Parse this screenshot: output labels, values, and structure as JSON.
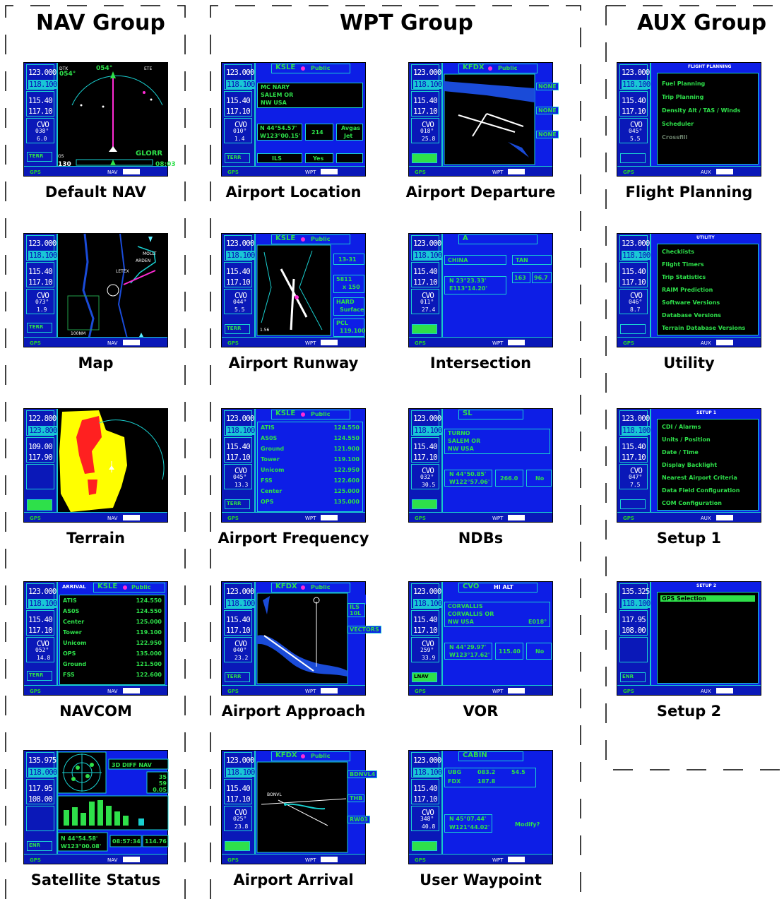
{
  "groups": {
    "nav": {
      "title": "NAV Group"
    },
    "wpt": {
      "title": "WPT Group"
    },
    "aux": {
      "title": "AUX Group"
    }
  },
  "tiles": {
    "default_nav": {
      "caption": "Default NAV",
      "com1": "123.000",
      "com2": "118.100",
      "nav1": "115.40",
      "nav2": "117.10",
      "vor": "CVO",
      "brg": "038°",
      "dis": "6.0",
      "dtk": "054°",
      "gs": "130",
      "trk": "054°",
      "ete": "08:03",
      "wpt": "GLORR"
    },
    "map": {
      "caption": "Map",
      "com1": "123.000",
      "com2": "118.100",
      "nav1": "115.40",
      "nav2": "117.10",
      "vor": "CVO",
      "brg": "073°",
      "dis": "1.9",
      "softkey": "TERR"
    },
    "terrain": {
      "caption": "Terrain",
      "com1": "122.800",
      "com2": "123.800",
      "nav1": "109.00",
      "nav2": "117.90"
    },
    "navcom": {
      "caption": "NAVCOM",
      "com1": "123.000",
      "com2": "118.100",
      "nav1": "115.40",
      "nav2": "117.10",
      "vor": "CVO",
      "brg": "052°",
      "dis": "14.8",
      "header": "ARRIVAL",
      "ident": "KSLE",
      "public": "Public",
      "rows": [
        [
          "ATIS",
          "124.550"
        ],
        [
          "AS0S",
          "124.550"
        ],
        [
          "Center",
          "125.000"
        ],
        [
          "Tower",
          "119.100"
        ],
        [
          "Unicom",
          "122.950"
        ],
        [
          "OPS",
          "135.000"
        ],
        [
          "Ground",
          "121.500"
        ],
        [
          "FSS",
          "122.600"
        ]
      ]
    },
    "satellite": {
      "caption": "Satellite Status",
      "com1": "135.975",
      "com2": "118.000",
      "nav1": "117.95",
      "nav2": "108.00",
      "status": "3D DIFF NAV",
      "epe": "35",
      "hdop": "59",
      "vdop": "0.05",
      "pos1": "N 44°54.58'",
      "pos2": "W123°00.08'",
      "time": "08:57:34",
      "alt": "114.76",
      "softkey": "ENR"
    },
    "airport_location": {
      "caption": "Airport Location",
      "com1": "123.000",
      "com2": "118.100",
      "nav1": "115.40",
      "nav2": "117.10",
      "vor": "CVO",
      "brg": "010°",
      "dis": "1.4",
      "ident": "KSLE",
      "public": "Public",
      "fac1": "MC NARY",
      "fac2": "SALEM OR",
      "fac3": "NW USA",
      "pos1": "N 44°54.57'",
      "pos2": "W123°00.15'",
      "elev": "214",
      "fuel1": "Avgas",
      "fuel2": "Jet",
      "appr": "ILS",
      "radar": "Yes"
    },
    "airport_runway": {
      "caption": "Airport Runway",
      "com1": "123.000",
      "com2": "118.100",
      "nav1": "115.40",
      "nav2": "117.10",
      "vor": "CVO",
      "brg": "044°",
      "dis": "5.5",
      "ident": "KSLE",
      "public": "Public",
      "rwy": "13-31",
      "size1": "5811",
      "size2": "x 150",
      "surf1": "HARD",
      "surf2": "Surface",
      "pcl1": "PCL",
      "pcl2": "119.100",
      "scale": "1.56"
    },
    "airport_frequency": {
      "caption": "Airport Frequency",
      "com1": "123.000",
      "com2": "118.100",
      "nav1": "115.40",
      "nav2": "117.10",
      "vor": "CVO",
      "brg": "045°",
      "dis": "13.3",
      "ident": "KSLE",
      "public": "Public",
      "rows": [
        [
          "ATIS",
          "124.550"
        ],
        [
          "AS0S",
          "124.550"
        ],
        [
          "Ground",
          "121.900"
        ],
        [
          "Tower",
          "119.100"
        ],
        [
          "Unicom",
          "122.950"
        ],
        [
          "FSS",
          "122.600"
        ],
        [
          "Center",
          "125.000"
        ],
        [
          "OPS",
          "135.000"
        ]
      ]
    },
    "airport_approach": {
      "caption": "Airport Approach",
      "com1": "123.000",
      "com2": "118.100",
      "nav1": "115.40",
      "nav2": "117.10",
      "vor": "CVO",
      "brg": "040°",
      "dis": "23.2",
      "ident": "KFDX",
      "public": "Public",
      "appr": "ILS 10L",
      "trans": "VECTORS"
    },
    "airport_arrival": {
      "caption": "Airport Arrival",
      "com1": "123.000",
      "com2": "118.100",
      "nav1": "115.40",
      "nav2": "117.10",
      "vor": "CVO",
      "brg": "025°",
      "dis": "23.8",
      "ident": "KFDX",
      "public": "Public",
      "arr": "BDNVL4",
      "trans": "THB",
      "rwy": "RW03"
    },
    "airport_departure": {
      "caption": "Airport Departure",
      "com1": "123.000",
      "com2": "118.100",
      "nav1": "115.40",
      "nav2": "117.10",
      "vor": "CVO",
      "brg": "018°",
      "dis": "25.8",
      "ident": "KFDX",
      "public": "Public",
      "dep": "NONE",
      "rwy": "NONE",
      "trans": "NONE"
    },
    "intersection": {
      "caption": "Intersection",
      "com1": "123.000",
      "com2": "118.100",
      "nav1": "115.40",
      "nav2": "117.10",
      "vor": "CVO",
      "brg": "011°",
      "dis": "27.4",
      "ident": "A",
      "region": "CHINA",
      "pos1": "N 23°23.33'",
      "pos2": "E113°14.20'",
      "near": "TAN",
      "rad": "163",
      "dis2": "96.7"
    },
    "ndbs": {
      "caption": "NDBs",
      "com1": "123.000",
      "com2": "118.100",
      "nav1": "115.40",
      "nav2": "117.10",
      "vor": "CVO",
      "brg": "032°",
      "dis": "30.5",
      "ident": "SL",
      "fac1": "TURNO",
      "fac2": "SALEM OR",
      "fac3": "NW USA",
      "pos1": "N 44°50.85'",
      "pos2": "W122°57.06'",
      "freq": "266.0",
      "wx": "No"
    },
    "vor": {
      "caption": "VOR",
      "com1": "123.000",
      "com2": "118.100",
      "nav1": "115.40",
      "nav2": "117.10",
      "vor": "CVO",
      "brg": "259°",
      "dis": "33.9",
      "ident": "CVO",
      "class": "HI ALT",
      "fac1": "CORVALLIS",
      "fac2": "CORVALLIS OR",
      "fac3": "NW USA",
      "var": "E018°",
      "pos1": "N 44°29.97'",
      "pos2": "W123°17.62'",
      "freq": "115.40",
      "wx": "No"
    },
    "user_waypoint": {
      "caption": "User Waypoint",
      "com1": "123.000",
      "com2": "118.100",
      "nav1": "115.40",
      "nav2": "117.10",
      "vor": "CVO",
      "brg": "348°",
      "dis": "40.8",
      "ident": "CABIN",
      "r1": "UBG",
      "r1a": "083.2",
      "r1b": "54.5",
      "r2": "FDX",
      "r2a": "187.8",
      "pos1": "N 45°07.44'",
      "pos2": "W121°44.02'",
      "modify": "Modify?"
    },
    "flight_planning": {
      "caption": "Flight Planning",
      "com1": "123.000",
      "com2": "118.100",
      "nav1": "115.40",
      "nav2": "117.10",
      "vor": "CVO",
      "brg": "045°",
      "dis": "5.5",
      "title": "FLIGHT PLANNING",
      "items": [
        "Fuel Planning",
        "Trip Planning",
        "Density Alt / TAS / Winds",
        "Scheduler",
        "Crossfill"
      ]
    },
    "utility": {
      "caption": "Utility",
      "com1": "123.000",
      "com2": "118.100",
      "nav1": "115.40",
      "nav2": "117.10",
      "vor": "CVO",
      "brg": "046°",
      "dis": "8.7",
      "title": "UTILITY",
      "items": [
        "Checklists",
        "Flight Timers",
        "Trip Statistics",
        "RAIM Prediction",
        "Software Versions",
        "Database Versions",
        "Terrain Database Versions"
      ]
    },
    "setup1": {
      "caption": "Setup 1",
      "com1": "123.000",
      "com2": "118.100",
      "nav1": "115.40",
      "nav2": "117.10",
      "vor": "CVO",
      "brg": "047°",
      "dis": "7.5",
      "title": "SETUP 1",
      "items": [
        "CDI / Alarms",
        "Units / Position",
        "Date / Time",
        "Display Backlight",
        "Nearest Airport Criteria",
        "Data Field Configuration",
        "COM Configuration"
      ]
    },
    "setup2": {
      "caption": "Setup 2",
      "com1": "135.325",
      "com2": "118.100",
      "nav1": "117.95",
      "nav2": "108.00",
      "title": "SETUP 2",
      "items": [
        "GPS Selection"
      ],
      "softkey": "ENR"
    }
  }
}
